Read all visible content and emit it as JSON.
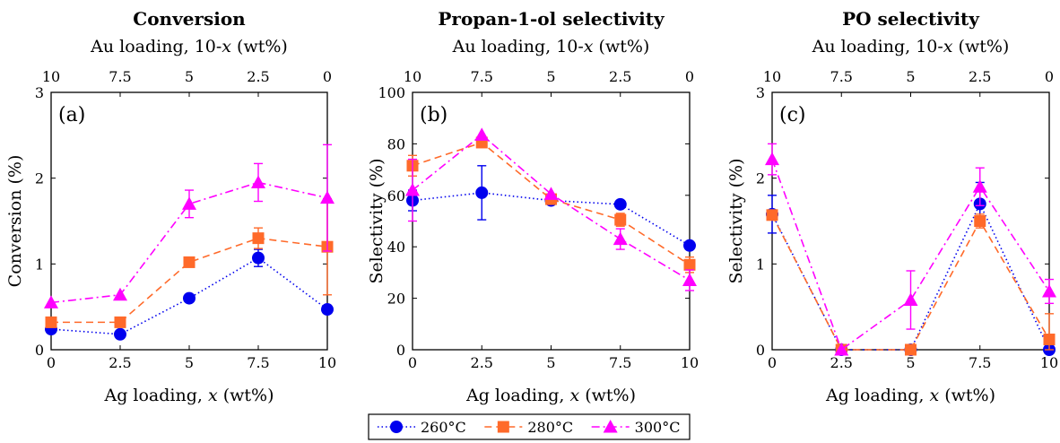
{
  "legend": {
    "placement": "bottom-center",
    "items": [
      {
        "label": "260°C",
        "color": "#0000ee",
        "marker": "circle",
        "dash": "dotted"
      },
      {
        "label": "280°C",
        "color": "#ff6a2a",
        "marker": "square",
        "dash": "dashed"
      },
      {
        "label": "300°C",
        "color": "#ff00ff",
        "marker": "triangle",
        "dash": "dashdot"
      }
    ]
  },
  "chart_data": [
    {
      "type": "line",
      "title": "Conversion",
      "panel_label": "(a)",
      "xlabel": "Ag loading, x (wt%)",
      "top_xlabel": "Au loading, 10-x (wt%)",
      "ylabel": "Conversion (%)",
      "xlim": [
        0,
        10
      ],
      "ylim": [
        0,
        3
      ],
      "xticks": [
        0,
        2.5,
        5,
        7.5,
        10
      ],
      "xtick_labels": [
        "0",
        "2.5",
        "5",
        "7.5",
        "10"
      ],
      "top_tick_labels": [
        "10",
        "7.5",
        "5",
        "2.5",
        "0"
      ],
      "yticks": [
        0,
        1,
        2,
        3
      ],
      "ytick_labels": [
        "0",
        "1",
        "2",
        "3"
      ],
      "x": [
        0,
        2.5,
        5,
        7.5,
        10
      ],
      "series": [
        {
          "name": "260°C",
          "values": [
            0.24,
            0.18,
            0.6,
            1.07,
            0.47
          ],
          "errors": [
            0,
            0,
            0,
            0.1,
            0
          ]
        },
        {
          "name": "280°C",
          "values": [
            0.32,
            0.32,
            1.02,
            1.3,
            1.2
          ],
          "errors": [
            0,
            0,
            0,
            0.12,
            0.56
          ]
        },
        {
          "name": "300°C",
          "values": [
            0.55,
            0.64,
            1.7,
            1.95,
            1.77
          ],
          "errors": [
            0,
            0,
            0.16,
            0.22,
            0.62
          ]
        }
      ]
    },
    {
      "type": "line",
      "title": "Propan-1-ol selectivity",
      "panel_label": "(b)",
      "xlabel": "Ag loading, x (wt%)",
      "top_xlabel": "Au loading, 10-x (wt%)",
      "ylabel": "Selectivity (%)",
      "xlim": [
        0,
        10
      ],
      "ylim": [
        0,
        100
      ],
      "xticks": [
        0,
        2.5,
        5,
        7.5,
        10
      ],
      "xtick_labels": [
        "0",
        "2.5",
        "5",
        "7.5",
        "10"
      ],
      "top_tick_labels": [
        "10",
        "7.5",
        "5",
        "2.5",
        "0"
      ],
      "yticks": [
        0,
        20,
        40,
        60,
        80,
        100
      ],
      "ytick_labels": [
        "0",
        "20",
        "40",
        "60",
        "80",
        "100"
      ],
      "x": [
        0,
        2.5,
        5,
        7.5,
        10
      ],
      "series": [
        {
          "name": "260°C",
          "values": [
            58,
            61,
            58,
            56.5,
            40.5
          ],
          "errors": [
            4,
            10.5,
            0,
            0,
            0
          ]
        },
        {
          "name": "280°C",
          "values": [
            71.5,
            80.5,
            58.5,
            50.5,
            33
          ],
          "errors": [
            4,
            0,
            0,
            2.5,
            3
          ]
        },
        {
          "name": "300°C",
          "values": [
            62,
            83.5,
            60.5,
            43,
            27
          ],
          "errors": [
            12,
            0,
            0,
            4,
            4
          ]
        }
      ]
    },
    {
      "type": "line",
      "title": "PO selectivity",
      "panel_label": "(c)",
      "xlabel": "Ag loading, x (wt%)",
      "top_xlabel": "Au loading, 10-x (wt%)",
      "ylabel": "Selectivity (%)",
      "xlim": [
        0,
        10
      ],
      "ylim": [
        0,
        3
      ],
      "xticks": [
        0,
        2.5,
        5,
        7.5,
        10
      ],
      "xtick_labels": [
        "0",
        "2.5",
        "5",
        "7.5",
        "10"
      ],
      "top_tick_labels": [
        "10",
        "7.5",
        "5",
        "2.5",
        "0"
      ],
      "yticks": [
        0,
        1,
        2,
        3
      ],
      "ytick_labels": [
        "0",
        "1",
        "2",
        "3"
      ],
      "x": [
        0,
        2.5,
        5,
        7.5,
        10
      ],
      "series": [
        {
          "name": "260°C",
          "values": [
            1.58,
            0,
            0,
            1.7,
            0
          ],
          "errors": [
            0.22,
            0,
            0,
            0.25,
            0
          ]
        },
        {
          "name": "280°C",
          "values": [
            1.57,
            0,
            0,
            1.5,
            0.12
          ],
          "errors": [
            0,
            0,
            0,
            0.08,
            0.3
          ]
        },
        {
          "name": "300°C",
          "values": [
            2.22,
            0,
            0.58,
            1.9,
            0.68
          ],
          "errors": [
            0.18,
            0,
            0.34,
            0.22,
            0.14
          ]
        }
      ]
    }
  ]
}
